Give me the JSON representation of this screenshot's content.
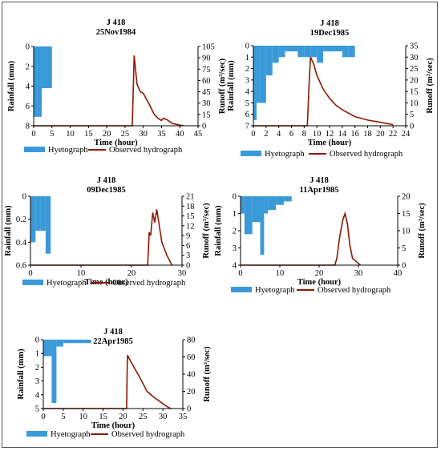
{
  "colors": {
    "hyetograph": "#3a9ad9",
    "hydrograph": "#8b1a00",
    "axis": "#000000"
  },
  "legend": {
    "hyetograph": "Hyetograph",
    "hydrograph": "Observed hydrograph"
  },
  "chart_data": [
    {
      "type": "bar",
      "station": "J 418",
      "date": "25Nov1984",
      "xlabel": "Time (hour)",
      "ylabel_left": "Rainfall (mm)",
      "ylabel_right": "Runoff (m³/sec)",
      "xlim": [
        0,
        45
      ],
      "xticks": [
        0,
        5,
        10,
        15,
        20,
        25,
        30,
        35,
        40,
        45
      ],
      "rain_lim": [
        0,
        8
      ],
      "rain_ticks": [
        0,
        2,
        4,
        6,
        8
      ],
      "runoff_lim": [
        0,
        105
      ],
      "runoff_ticks": [
        0,
        15,
        30,
        45,
        60,
        75,
        90,
        105
      ],
      "hyetograph": [
        {
          "t0": 0,
          "t1": 1,
          "mm": 7.1
        },
        {
          "t0": 1,
          "t1": 2.2,
          "mm": 7.1
        },
        {
          "t0": 2.2,
          "t1": 5,
          "mm": 4.2
        }
      ],
      "hydrograph": {
        "x": [
          0,
          27,
          27.5,
          28.3,
          29.2,
          30,
          31,
          32,
          33,
          34,
          35,
          35.5,
          36.5,
          38,
          40,
          41
        ],
        "y": [
          0,
          0,
          93,
          55,
          45,
          43,
          34,
          25,
          15,
          10,
          7,
          10,
          8,
          3,
          1,
          0
        ]
      }
    },
    {
      "type": "bar",
      "station": "J 418",
      "date": "19Dec1985",
      "xlabel": "Time (hour)",
      "ylabel_left": "Rainfall (mm)",
      "ylabel_right": "Runoff (m³/sec)",
      "xlim": [
        0,
        24
      ],
      "xticks": [
        0,
        2,
        4,
        6,
        8,
        10,
        12,
        14,
        16,
        18,
        20,
        22,
        24
      ],
      "rain_lim": [
        0,
        7
      ],
      "rain_ticks": [
        0,
        1,
        2,
        3,
        4,
        5,
        6,
        7
      ],
      "runoff_lim": [
        0,
        35
      ],
      "runoff_ticks": [
        0,
        5,
        10,
        15,
        20,
        25,
        30,
        35
      ],
      "hyetograph": [
        {
          "t0": 0,
          "t1": 0.5,
          "mm": 6.5
        },
        {
          "t0": 0.5,
          "t1": 1,
          "mm": 5
        },
        {
          "t0": 1,
          "t1": 2,
          "mm": 5
        },
        {
          "t0": 2,
          "t1": 3,
          "mm": 2.6
        },
        {
          "t0": 3,
          "t1": 4,
          "mm": 1.5
        },
        {
          "t0": 4,
          "t1": 5,
          "mm": 1
        },
        {
          "t0": 5,
          "t1": 6,
          "mm": 0.5
        },
        {
          "t0": 6,
          "t1": 7,
          "mm": 0.5
        },
        {
          "t0": 7,
          "t1": 8,
          "mm": 1
        },
        {
          "t0": 8,
          "t1": 9,
          "mm": 1
        },
        {
          "t0": 9,
          "t1": 10,
          "mm": 1
        },
        {
          "t0": 10,
          "t1": 11,
          "mm": 1.5
        },
        {
          "t0": 11,
          "t1": 12,
          "mm": 0.5
        },
        {
          "t0": 12,
          "t1": 13,
          "mm": 0.5
        },
        {
          "t0": 13,
          "t1": 14,
          "mm": 0.5
        },
        {
          "t0": 14,
          "t1": 15,
          "mm": 1
        },
        {
          "t0": 15,
          "t1": 16,
          "mm": 1
        }
      ],
      "hydrograph": {
        "x": [
          0,
          8.5,
          8.8,
          9,
          9.5,
          10,
          11,
          12,
          13,
          14,
          16,
          18,
          20,
          22
        ],
        "y": [
          0,
          0,
          20,
          30,
          27,
          22,
          16,
          12,
          9,
          7,
          4,
          2.5,
          1.5,
          0.5
        ]
      }
    },
    {
      "type": "bar",
      "station": "J 418",
      "date": "09Dec1985",
      "xlabel": "Time (hour)",
      "ylabel_left": "Rainfall (mm)",
      "ylabel_right": "Runoff (m³/sec)",
      "xlim": [
        0,
        30
      ],
      "xticks": [
        0,
        10,
        20,
        30
      ],
      "rain_lim": [
        0,
        0.6
      ],
      "rain_ticks": [
        0,
        0.2,
        0.4,
        0.6
      ],
      "runoff_lim": [
        0,
        21
      ],
      "runoff_ticks": [
        0,
        3,
        6,
        9,
        12,
        15,
        18,
        21
      ],
      "hyetograph": [
        {
          "t0": 0,
          "t1": 1,
          "mm": 0.4
        },
        {
          "t0": 1,
          "t1": 2,
          "mm": 0.3
        },
        {
          "t0": 2,
          "t1": 3,
          "mm": 0.3
        },
        {
          "t0": 3,
          "t1": 4,
          "mm": 0.5
        }
      ],
      "hydrograph": {
        "x": [
          0,
          23.2,
          23.5,
          23.8,
          24.2,
          24.6,
          25,
          25.5,
          26,
          27,
          28
        ],
        "y": [
          0,
          0,
          10,
          9,
          16,
          13,
          17,
          12,
          7,
          3,
          0
        ]
      }
    },
    {
      "type": "bar",
      "station": "J 418",
      "date": "11Apr1985",
      "xlabel": "Time (hour)",
      "ylabel_left": "Rainfall (mm)",
      "ylabel_right": "Runoff (m³/sec)",
      "xlim": [
        0,
        40
      ],
      "xticks": [
        0,
        10,
        20,
        30,
        40
      ],
      "rain_lim": [
        0,
        4
      ],
      "rain_ticks": [
        0,
        1,
        2,
        3,
        4
      ],
      "runoff_lim": [
        0,
        20
      ],
      "runoff_ticks": [
        0,
        5,
        10,
        15,
        20
      ],
      "hyetograph": [
        {
          "t0": 0,
          "t1": 1,
          "mm": 1
        },
        {
          "t0": 1,
          "t1": 3,
          "mm": 2.2
        },
        {
          "t0": 3,
          "t1": 5,
          "mm": 1.5
        },
        {
          "t0": 5,
          "t1": 6,
          "mm": 3.4
        },
        {
          "t0": 6,
          "t1": 7,
          "mm": 1
        },
        {
          "t0": 7,
          "t1": 9,
          "mm": 0.8
        },
        {
          "t0": 9,
          "t1": 11,
          "mm": 0.5
        },
        {
          "t0": 11,
          "t1": 13,
          "mm": 0.3
        }
      ],
      "hydrograph": {
        "x": [
          0,
          24,
          24.5,
          25.2,
          26,
          26.6,
          27.2,
          27.8,
          28.5,
          29.5,
          30.5
        ],
        "y": [
          0,
          0,
          2,
          8,
          13,
          15,
          12,
          6,
          2,
          1,
          0
        ]
      }
    },
    {
      "type": "bar",
      "station": "J 418",
      "date": "22Apr1985",
      "xlabel": "Time (hour)",
      "ylabel_left": "Rainfall (mm)",
      "ylabel_right": "Runoff (m³/sec)",
      "xlim": [
        0,
        35
      ],
      "xticks": [
        0,
        5,
        10,
        15,
        20,
        25,
        30,
        35
      ],
      "rain_lim": [
        0,
        5
      ],
      "rain_ticks": [
        0,
        1,
        2,
        3,
        4,
        5
      ],
      "runoff_lim": [
        0,
        80
      ],
      "runoff_ticks": [
        0,
        20,
        40,
        60,
        80
      ],
      "hyetograph": [
        {
          "t0": 0,
          "t1": 0.7,
          "mm": 1.2
        },
        {
          "t0": 0.7,
          "t1": 1.4,
          "mm": 1.2
        },
        {
          "t0": 1.4,
          "t1": 2.1,
          "mm": 1.2
        },
        {
          "t0": 2.1,
          "t1": 3.3,
          "mm": 4.6
        },
        {
          "t0": 3.3,
          "t1": 5,
          "mm": 0.5
        },
        {
          "t0": 5,
          "t1": 7.5,
          "mm": 0.25
        },
        {
          "t0": 7.5,
          "t1": 10,
          "mm": 0.25
        },
        {
          "t0": 10,
          "t1": 12,
          "mm": 0.25
        }
      ],
      "hydrograph": {
        "x": [
          0,
          20.9,
          21.1,
          22,
          23,
          24,
          25,
          26,
          27.5,
          29,
          30.5,
          31.5,
          32
        ],
        "y": [
          0,
          0,
          62,
          54,
          46,
          38,
          29,
          20,
          14,
          9,
          4,
          1,
          0
        ]
      }
    }
  ]
}
